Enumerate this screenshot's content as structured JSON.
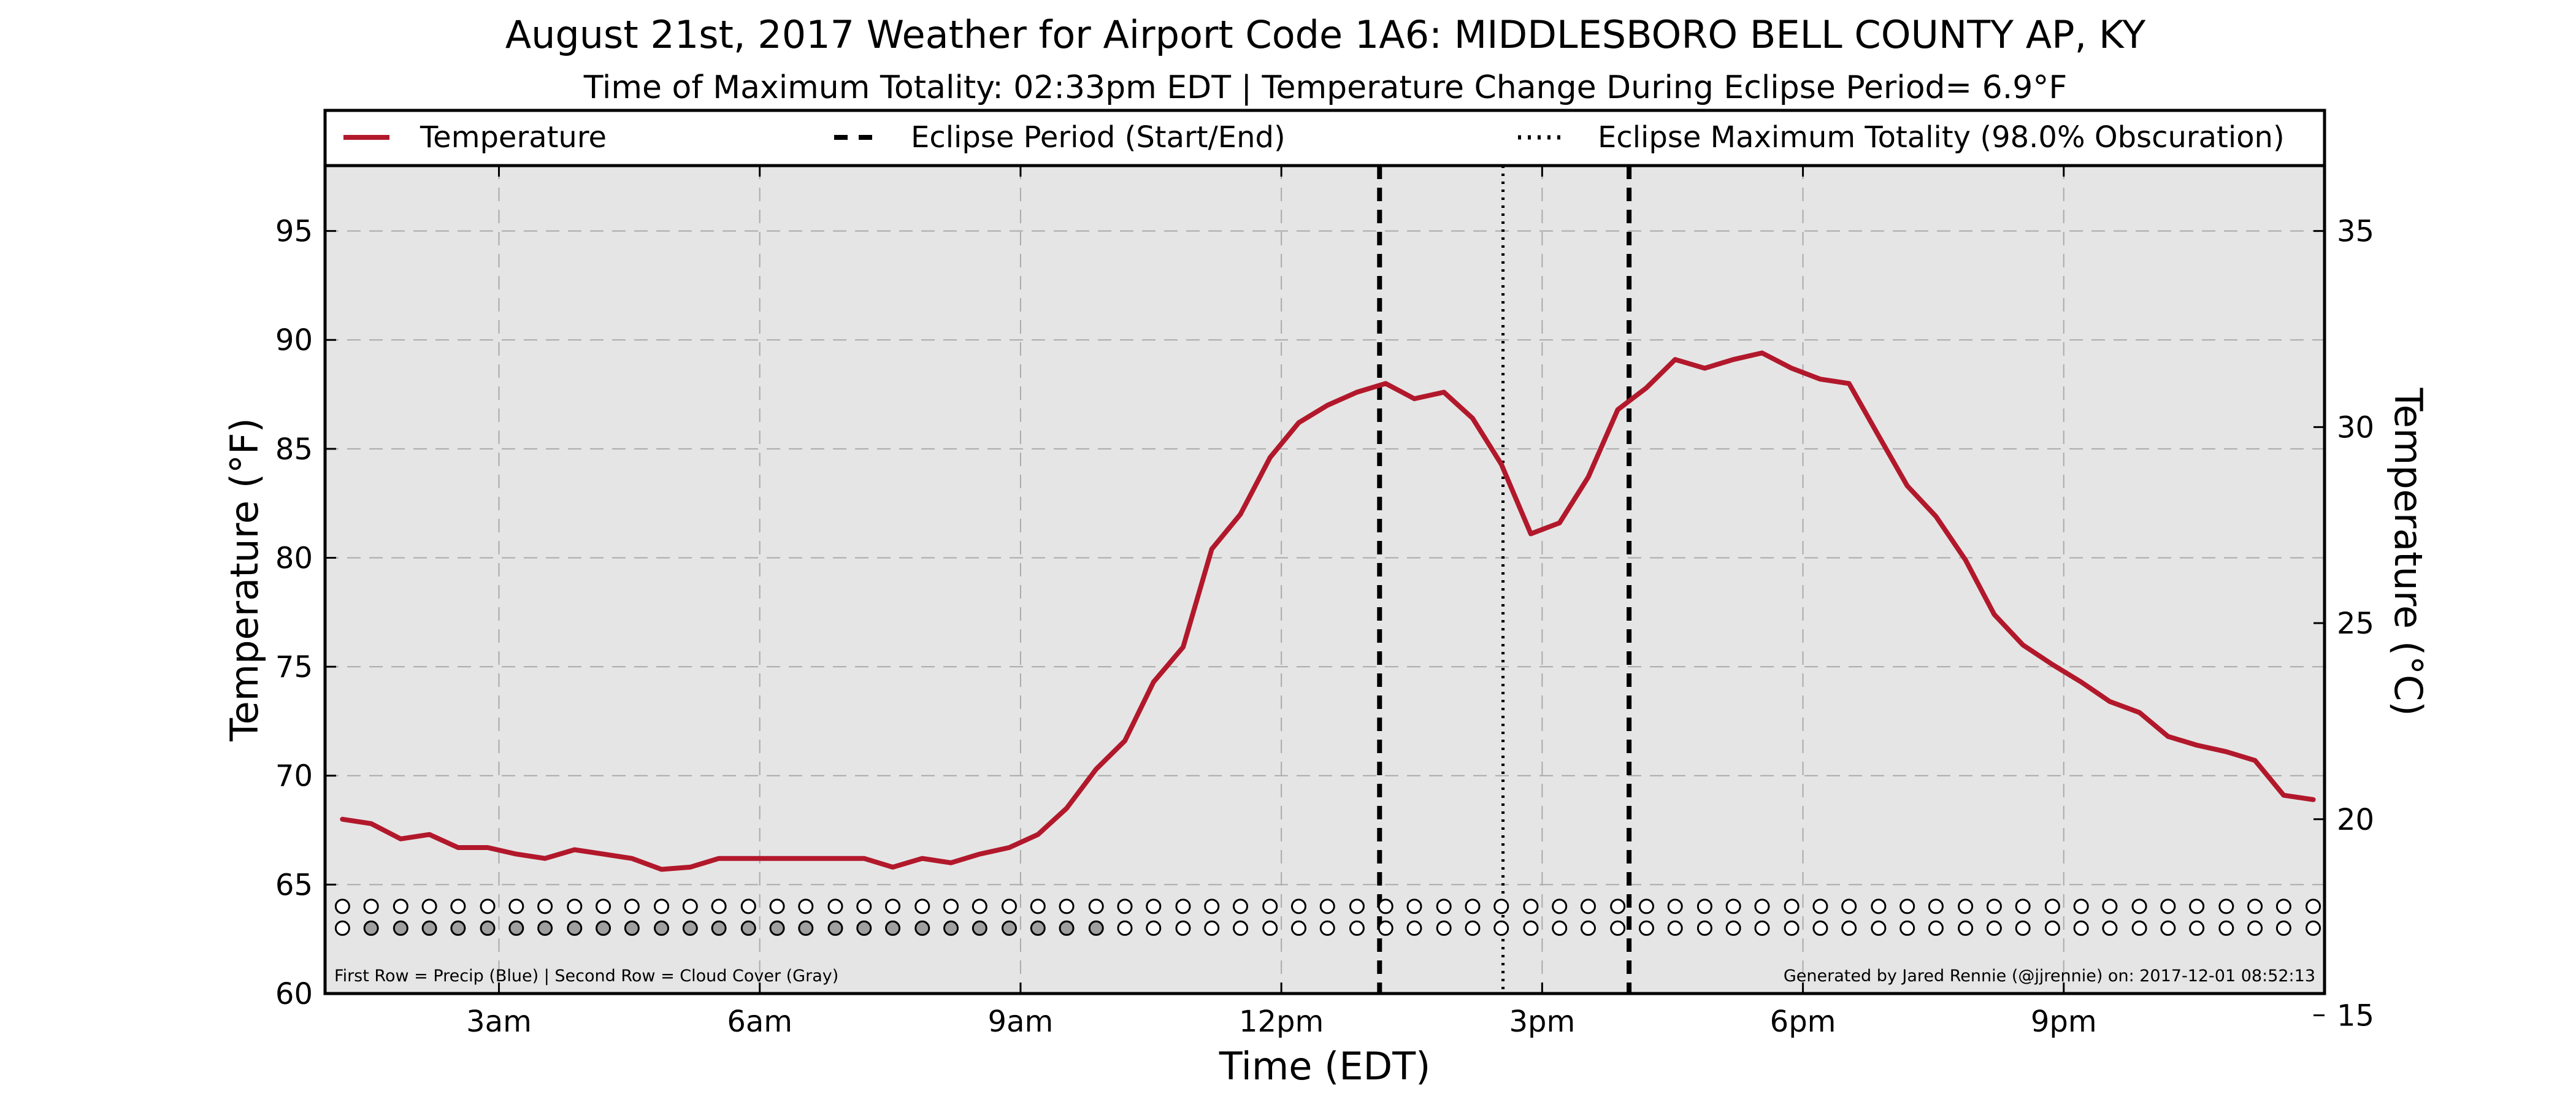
{
  "chart_data": {
    "type": "line",
    "title": "August 21st, 2017 Weather for Airport Code 1A6: MIDDLESBORO BELL COUNTY AP, KY",
    "subtitle": "Time of Maximum Totality: 02:33pm EDT | Temperature Change During Eclipse Period= 6.9°F",
    "xlabel": "Time (EDT)",
    "ylabel": "Temperature (°F)",
    "ylabel_right": "Temperature (°C)",
    "xlim": [
      1.0,
      24.0
    ],
    "ylim": [
      60,
      98
    ],
    "ylim_right_celsius": [
      15.556,
      36.667
    ],
    "grid": true,
    "legend_placement": "top",
    "legend": [
      {
        "label": "Temperature",
        "style": "solid",
        "color": "#b2182b"
      },
      {
        "label": "Eclipse Period (Start/End)",
        "style": "dashed",
        "color": "#000000"
      },
      {
        "label": "Eclipse Maximum Totality (98.0% Obscuration)",
        "style": "dotted",
        "color": "#000000"
      }
    ],
    "x_ticks": [
      {
        "value": 3,
        "label": "3am"
      },
      {
        "value": 6,
        "label": "6am"
      },
      {
        "value": 9,
        "label": "9am"
      },
      {
        "value": 12,
        "label": "12pm"
      },
      {
        "value": 15,
        "label": "3pm"
      },
      {
        "value": 18,
        "label": "6pm"
      },
      {
        "value": 21,
        "label": "9pm"
      }
    ],
    "y_ticks": [
      {
        "value": 60,
        "label": "60"
      },
      {
        "value": 65,
        "label": "65"
      },
      {
        "value": 70,
        "label": "70"
      },
      {
        "value": 75,
        "label": "75"
      },
      {
        "value": 80,
        "label": "80"
      },
      {
        "value": 85,
        "label": "85"
      },
      {
        "value": 90,
        "label": "90"
      },
      {
        "value": 95,
        "label": "95"
      }
    ],
    "y_ticks_right": [
      {
        "value": 15,
        "label": "15"
      },
      {
        "value": 20,
        "label": "20"
      },
      {
        "value": 25,
        "label": "25"
      },
      {
        "value": 30,
        "label": "30"
      },
      {
        "value": 35,
        "label": "35"
      }
    ],
    "series": [
      {
        "name": "Temperature",
        "color": "#b2182b",
        "x": [
          1.2,
          1.53,
          1.87,
          2.2,
          2.53,
          2.87,
          3.2,
          3.53,
          3.87,
          4.2,
          4.53,
          4.87,
          5.2,
          5.53,
          5.87,
          6.2,
          6.53,
          6.87,
          7.2,
          7.53,
          7.87,
          8.2,
          8.53,
          8.87,
          9.2,
          9.53,
          9.87,
          10.2,
          10.53,
          10.87,
          11.2,
          11.53,
          11.87,
          12.2,
          12.53,
          12.87,
          13.2,
          13.53,
          13.87,
          14.2,
          14.53,
          14.87,
          15.2,
          15.53,
          15.87,
          16.2,
          16.53,
          16.87,
          17.2,
          17.53,
          17.87,
          18.2,
          18.53,
          18.87,
          19.2,
          19.53,
          19.87,
          20.2,
          20.53,
          20.87,
          21.2,
          21.53,
          21.87,
          22.2,
          22.53,
          22.87,
          23.2,
          23.53,
          23.87
        ],
        "y": [
          68.0,
          67.8,
          67.1,
          67.3,
          66.7,
          66.7,
          66.4,
          66.2,
          66.6,
          66.4,
          66.2,
          65.7,
          65.8,
          66.2,
          66.2,
          66.2,
          66.2,
          66.2,
          66.2,
          65.8,
          66.2,
          66.0,
          66.4,
          66.7,
          67.3,
          68.5,
          70.3,
          71.6,
          74.3,
          75.9,
          80.4,
          82.0,
          84.6,
          86.2,
          87.0,
          87.6,
          88.0,
          87.3,
          87.6,
          86.4,
          84.3,
          81.1,
          81.6,
          83.7,
          86.8,
          87.8,
          89.1,
          88.7,
          89.1,
          89.4,
          88.7,
          88.2,
          88.0,
          85.6,
          83.3,
          81.9,
          79.9,
          77.4,
          76.0,
          75.1,
          74.3,
          73.4,
          72.9,
          71.8,
          71.4,
          71.1,
          70.7,
          69.1,
          68.9
        ]
      }
    ],
    "eclipse": {
      "start": 13.13,
      "end": 16.0,
      "maximum": 14.55,
      "maximum_label": "02:33pm EDT",
      "obscuration_percent": 98.0,
      "temperature_change_f": 6.9
    },
    "precip_row": {
      "y": 64.0,
      "x": [
        1.2,
        1.53,
        1.87,
        2.2,
        2.53,
        2.87,
        3.2,
        3.53,
        3.87,
        4.2,
        4.53,
        4.87,
        5.2,
        5.53,
        5.87,
        6.2,
        6.53,
        6.87,
        7.2,
        7.53,
        7.87,
        8.2,
        8.53,
        8.87,
        9.2,
        9.53,
        9.87,
        10.2,
        10.53,
        10.87,
        11.2,
        11.53,
        11.87,
        12.2,
        12.53,
        12.87,
        13.2,
        13.53,
        13.87,
        14.2,
        14.53,
        14.87,
        15.2,
        15.53,
        15.87,
        16.2,
        16.53,
        16.87,
        17.2,
        17.53,
        17.87,
        18.2,
        18.53,
        18.87,
        19.2,
        19.53,
        19.87,
        20.2,
        20.53,
        20.87,
        21.2,
        21.53,
        21.87,
        22.2,
        22.53,
        22.87,
        23.2,
        23.53,
        23.87
      ],
      "filled": []
    },
    "cloud_row": {
      "y": 63.0,
      "x": [
        1.2,
        1.53,
        1.87,
        2.2,
        2.53,
        2.87,
        3.2,
        3.53,
        3.87,
        4.2,
        4.53,
        4.87,
        5.2,
        5.53,
        5.87,
        6.2,
        6.53,
        6.87,
        7.2,
        7.53,
        7.87,
        8.2,
        8.53,
        8.87,
        9.2,
        9.53,
        9.87,
        10.2,
        10.53,
        10.87,
        11.2,
        11.53,
        11.87,
        12.2,
        12.53,
        12.87,
        13.2,
        13.53,
        13.87,
        14.2,
        14.53,
        14.87,
        15.2,
        15.53,
        15.87,
        16.2,
        16.53,
        16.87,
        17.2,
        17.53,
        17.87,
        18.2,
        18.53,
        18.87,
        19.2,
        19.53,
        19.87,
        20.2,
        20.53,
        20.87,
        21.2,
        21.53,
        21.87,
        22.2,
        22.53,
        22.87,
        23.2,
        23.53,
        23.87
      ],
      "filled": [
        1.53,
        1.87,
        2.2,
        2.53,
        2.87,
        3.2,
        3.53,
        3.87,
        4.2,
        4.53,
        4.87,
        5.2,
        5.53,
        5.87,
        6.2,
        6.53,
        6.87,
        7.2,
        7.53,
        7.87,
        8.2,
        8.53,
        8.87,
        9.2,
        9.53,
        9.87
      ]
    },
    "footnote_left": "First Row = Precip (Blue) | Second Row = Cloud Cover (Gray)",
    "footnote_right": "Generated by Jared Rennie (@jjrennie) on: 2017-12-01 08:52:13",
    "colors": {
      "temperature": "#b2182b",
      "plot_background": "#e5e5e5",
      "cloud_fill": "#a0a0a0",
      "grid": "#aaaaaa"
    }
  }
}
